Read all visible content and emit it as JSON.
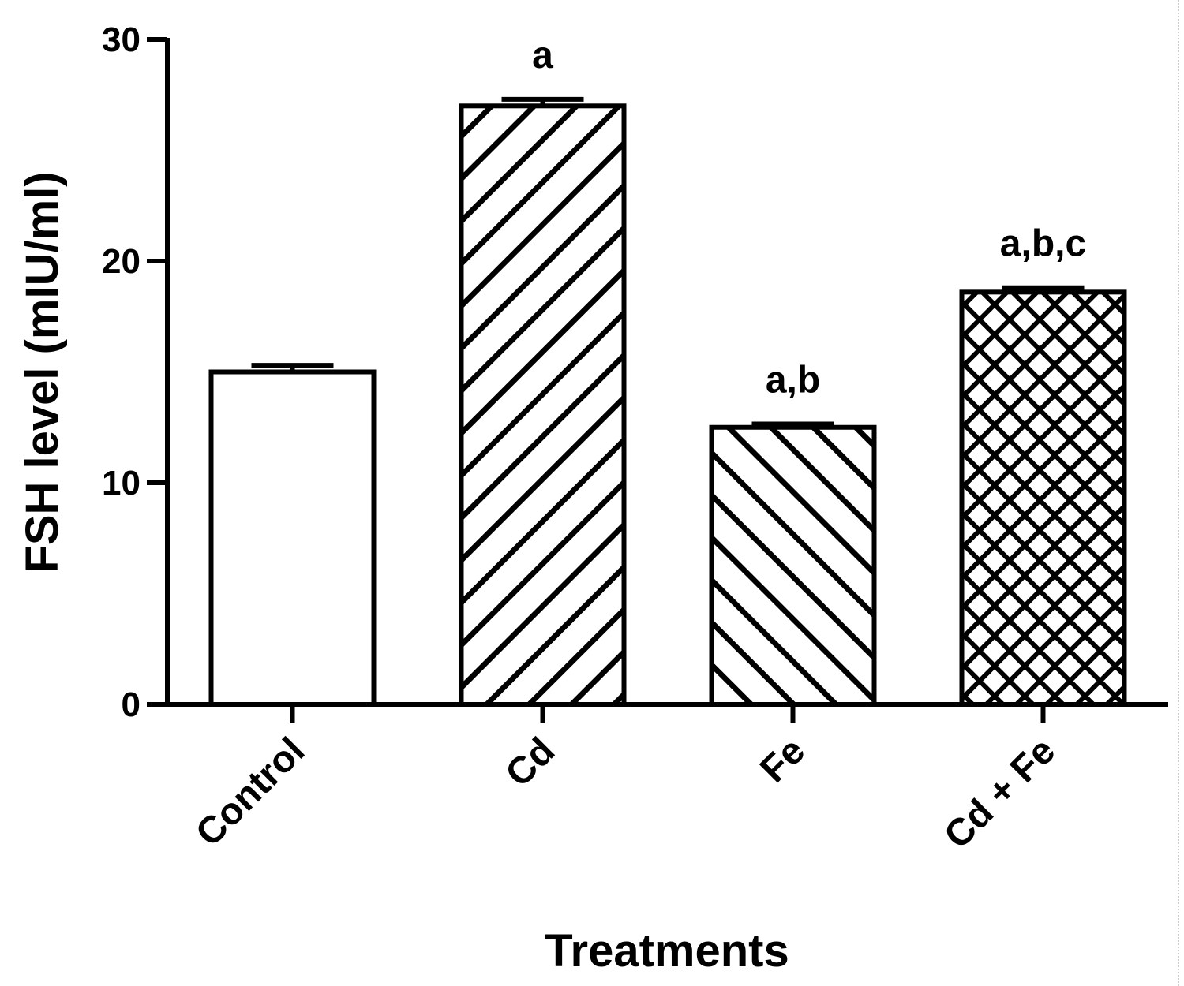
{
  "chart_data": {
    "type": "bar",
    "title": "",
    "xlabel": "Treatments",
    "ylabel": "FSH level (mIU/ml)",
    "ylim": [
      0,
      30
    ],
    "yticks": [
      0,
      10,
      20,
      30
    ],
    "categories": [
      "Control",
      "Cd",
      "Fe",
      "Cd + Fe"
    ],
    "values": [
      15.0,
      27.0,
      12.5,
      18.6
    ],
    "errors": [
      0.3,
      0.3,
      0.15,
      0.2
    ],
    "significance": [
      "",
      "a",
      "a,b",
      "a,b,c"
    ],
    "patterns": [
      "none",
      "diagonal-down",
      "diagonal-up",
      "crosshatch"
    ],
    "grid": false,
    "colors": {
      "stroke": "#000000",
      "fill": "#ffffff"
    }
  }
}
